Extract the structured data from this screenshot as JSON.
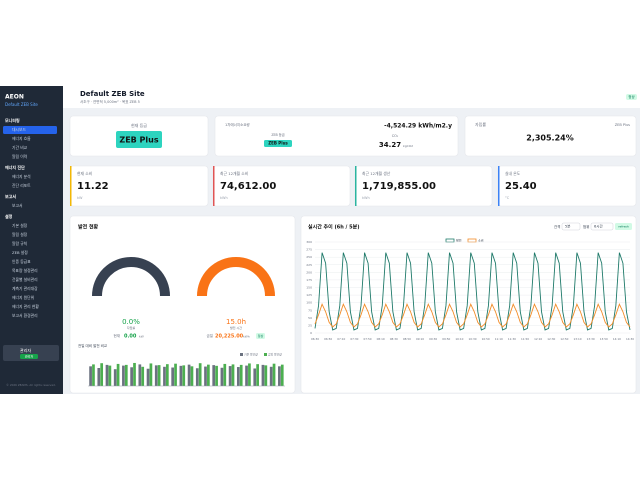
{
  "sidebar": {
    "brand": "AEON",
    "site": "Default ZEB Site",
    "menu": [
      {
        "group": "모니터링",
        "items": [
          "대시보드",
          "에너지 흐름",
          "기간 비교",
          "알림 이력"
        ]
      },
      {
        "group": "에너지 진단",
        "items": [
          "에너지 분석",
          "진단 리포트"
        ]
      },
      {
        "group": "보고서",
        "items": [
          "보고서"
        ]
      },
      {
        "group": "설정",
        "items": [
          "기본 설정",
          "알림 설정",
          "알람 규칙",
          "ZEB 설정",
          "인증 등급표",
          "목표량 설정관리",
          "건물별 설비관리",
          "계측기 관리대장",
          "에너지 원단위",
          "에너지 관리 현황",
          "보고서 환경관리"
        ]
      }
    ],
    "user": "관리자",
    "role": "관리자",
    "footer": "© 2026 ZEAMS. All rights reserved."
  },
  "header": {
    "title": "Default ZEB Site",
    "subtitle": "서초구 · 연면적 5,000m² · 목표 ZEB 5",
    "status": "정상"
  },
  "summary": [
    {
      "label": "현재 등급",
      "badge": "ZEB Plus"
    },
    {
      "label": "1차에너지소요량",
      "value": "-4,524.29 kWh/m2.y",
      "sub_label": "ZEB 등급",
      "badge": "ZEB Plus",
      "co2_label": "CO₂",
      "co2": "34.27",
      "co2_unit": "kgCO2"
    },
    {
      "label": "자립률",
      "tag": "ZEB Plus",
      "value": "2,305.24%"
    }
  ],
  "kpis": [
    {
      "label": "현재 소비",
      "value": "11.22",
      "unit": "kW",
      "color": "#f2b705"
    },
    {
      "label": "최근 12개월 소비",
      "value": "74,612.00",
      "unit": "kWh",
      "color": "#e05555"
    },
    {
      "label": "최근 12개월 생산",
      "value": "1,719,855.00",
      "unit": "kWh",
      "color": "#2bb5a0"
    },
    {
      "label": "실내 온도",
      "value": "25.40",
      "unit": "°C",
      "color": "#3b82f6"
    }
  ],
  "generation": {
    "title": "발전 현황",
    "left": {
      "value": "0.0%",
      "label": "자립률",
      "now_label": "현재",
      "now": "0.00",
      "now_unit": "kW"
    },
    "right": {
      "value": "15.0h",
      "label": "발전 시간",
      "today_label": "금일",
      "today": "20,225.00",
      "today_unit": "kWh",
      "status": "정상"
    },
    "bars": {
      "type": "bar",
      "title": "전일 대비 발전 비교",
      "ylim": [
        0,
        100
      ],
      "series": [
        {
          "name": "기준 발전량",
          "color": "#6b7280",
          "values": [
            82,
            75,
            88,
            70,
            85,
            78,
            90,
            72,
            86,
            80,
            77,
            84,
            89,
            74,
            81,
            87,
            76,
            83,
            79,
            85,
            73,
            88,
            80,
            82
          ]
        },
        {
          "name": "금일 발전량",
          "color": "#4caf50",
          "values": [
            90,
            95,
            85,
            92,
            88,
            96,
            80,
            94,
            87,
            91,
            93,
            86,
            82,
            95,
            89,
            84,
            92,
            90,
            88,
            94,
            91,
            86,
            93,
            89
          ]
        }
      ]
    }
  },
  "trend": {
    "type": "line",
    "title": "실시간 추이 (6h / 5분)",
    "interval_label": "간격",
    "interval": "5분",
    "range_label": "범위",
    "range": "6시간",
    "button": "refresh",
    "ylim": [
      0,
      300
    ],
    "yticks": [
      0,
      25,
      50,
      75,
      100,
      125,
      150,
      175,
      200,
      225,
      250,
      275,
      300
    ],
    "grid": true,
    "x_labels": [
      "06:30",
      "06:50",
      "07:10",
      "07:30",
      "07:50",
      "08:10",
      "08:30",
      "08:50",
      "09:10",
      "09:30",
      "09:50",
      "10:10",
      "10:30",
      "10:50",
      "11:10",
      "11:30",
      "11:50",
      "12:10",
      "12:30",
      "12:50",
      "13:10",
      "13:30",
      "13:50",
      "14:10",
      "14:30"
    ],
    "series": [
      {
        "name": "발전",
        "color": "#1f7a6a",
        "values": [
          15,
          90,
          265,
          230,
          70,
          10,
          15,
          90,
          265,
          230,
          70,
          10,
          15,
          90,
          265,
          230,
          70,
          10,
          15,
          90,
          265,
          230,
          70,
          10,
          15,
          90,
          265,
          230,
          70,
          10,
          15,
          90,
          265,
          230,
          70,
          10,
          15,
          90,
          265,
          230,
          70,
          10,
          15,
          90,
          265,
          230,
          70,
          10,
          15,
          90,
          265,
          230,
          70,
          10,
          15,
          90,
          265,
          230,
          70,
          10,
          15,
          90,
          265,
          230,
          70,
          10,
          15,
          90,
          265,
          230,
          70,
          10,
          15,
          90,
          265,
          230,
          70,
          10,
          15,
          90,
          265,
          230,
          70,
          10,
          15,
          90,
          265,
          230,
          70,
          10
        ]
      },
      {
        "name": "소비",
        "color": "#f28c28",
        "values": [
          30,
          60,
          95,
          70,
          35,
          20,
          30,
          60,
          95,
          70,
          35,
          20,
          30,
          60,
          95,
          70,
          35,
          20,
          30,
          60,
          95,
          70,
          35,
          20,
          30,
          60,
          95,
          70,
          35,
          20,
          30,
          60,
          95,
          70,
          35,
          20,
          30,
          60,
          95,
          70,
          35,
          20,
          30,
          60,
          95,
          70,
          35,
          20,
          30,
          60,
          95,
          70,
          35,
          20,
          30,
          60,
          95,
          70,
          35,
          20,
          30,
          60,
          95,
          70,
          35,
          20,
          30,
          60,
          95,
          70,
          35,
          20,
          30,
          60,
          95,
          70,
          35,
          20,
          30,
          60,
          95,
          70,
          35,
          20,
          30,
          60,
          95,
          70,
          35,
          20
        ]
      }
    ]
  }
}
